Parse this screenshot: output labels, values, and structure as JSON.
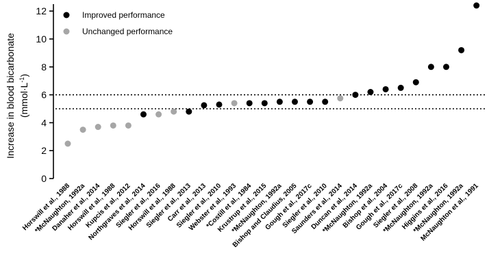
{
  "chart_data": {
    "type": "scatter",
    "ylabel_line1": "Increase in blood bicarbonate",
    "ylabel_line2_prefix": "(mmol·L",
    "ylabel_line2_sup": "-1",
    "ylabel_line2_suffix": ")",
    "ylim": [
      0,
      12.5
    ],
    "yticks": [
      "0",
      "2",
      "4",
      "6",
      "8",
      "10",
      "12"
    ],
    "reference_lines": [
      5,
      6
    ],
    "grid": false,
    "legend_position": "top-left",
    "colors": {
      "improved": "#000000",
      "unchanged": "#a6a6a6"
    },
    "series": [
      {
        "name": "Improved performance",
        "key": "improved"
      },
      {
        "name": "Unchanged performance",
        "key": "unchanged"
      }
    ],
    "points": [
      {
        "label": "Horswill et al., 1988",
        "value": 2.5,
        "group": "unchanged"
      },
      {
        "label": "*McNaughton, 1992a",
        "value": 3.5,
        "group": "unchanged"
      },
      {
        "label": "Danaher et al., 2014",
        "value": 3.7,
        "group": "unchanged"
      },
      {
        "label": "Horswill et al., 1988",
        "value": 3.8,
        "group": "unchanged"
      },
      {
        "label": "Kupcis et al., 2012",
        "value": 3.8,
        "group": "unchanged"
      },
      {
        "label": "Northgraves et al., 2014",
        "value": 4.6,
        "group": "improved"
      },
      {
        "label": "Siegler et al., 2016",
        "value": 4.6,
        "group": "unchanged"
      },
      {
        "label": "Horswill et al., 1988",
        "value": 4.8,
        "group": "unchanged"
      },
      {
        "label": "Siegler et al., 2013",
        "value": 4.8,
        "group": "improved"
      },
      {
        "label": "Carr et al., 2013",
        "value": 5.25,
        "group": "improved"
      },
      {
        "label": "Siegler et al., 2010",
        "value": 5.3,
        "group": "improved"
      },
      {
        "label": "Webster et al., 1993",
        "value": 5.4,
        "group": "unchanged"
      },
      {
        "label": "*Costill et al., 1984",
        "value": 5.4,
        "group": "improved"
      },
      {
        "label": "Krustrup et al., 2015",
        "value": 5.4,
        "group": "improved"
      },
      {
        "label": "*McNaughton, 1992a",
        "value": 5.5,
        "group": "improved"
      },
      {
        "label": "Bishop and Claudius, 2005",
        "value": 5.5,
        "group": "improved"
      },
      {
        "label": "Gough et al., 2017c",
        "value": 5.5,
        "group": "improved"
      },
      {
        "label": "Siegler et al., 2010",
        "value": 5.5,
        "group": "improved"
      },
      {
        "label": "Saunders et al., 2014",
        "value": 5.75,
        "group": "unchanged"
      },
      {
        "label": "Duncan et al., 2014",
        "value": 6.0,
        "group": "improved"
      },
      {
        "label": "*McNaughton, 1992a",
        "value": 6.2,
        "group": "improved"
      },
      {
        "label": "Bishop et al., 2004",
        "value": 6.4,
        "group": "improved"
      },
      {
        "label": "Gough et al., 2017c",
        "value": 6.5,
        "group": "improved"
      },
      {
        "label": "Siegler et al., 2008",
        "value": 6.9,
        "group": "improved"
      },
      {
        "label": "*McNaughton, 1992a",
        "value": 8.0,
        "group": "improved"
      },
      {
        "label": "Higgins et al., 2016",
        "value": 8.0,
        "group": "improved"
      },
      {
        "label": "*McNaughton, 1992a",
        "value": 9.2,
        "group": "improved"
      },
      {
        "label": "McNaughton et al., 1991",
        "value": 12.4,
        "group": "improved"
      }
    ]
  }
}
